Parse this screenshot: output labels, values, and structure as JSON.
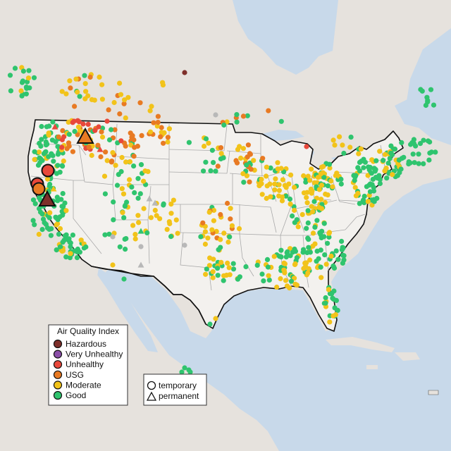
{
  "legend": {
    "title": "Air Quality Index",
    "items": [
      {
        "label": "Hazardous",
        "color": "#7e2f2a"
      },
      {
        "label": "Very Unhealthy",
        "color": "#8b4fa8"
      },
      {
        "label": "Unhealthy",
        "color": "#e8483b"
      },
      {
        "label": "USG",
        "color": "#e87a23"
      },
      {
        "label": "Moderate",
        "color": "#f2c31a"
      },
      {
        "label": "Good",
        "color": "#2fc46e"
      }
    ]
  },
  "shape_legend": {
    "items": [
      {
        "label": "temporary",
        "shape": "circle"
      },
      {
        "label": "permanent",
        "shape": "triangle"
      }
    ]
  },
  "colors": {
    "water": "#c8d9ea",
    "land": "#e6e2dd",
    "land_us": "#f3f1ee",
    "border": "#111111",
    "state_line": "#a9a9a9",
    "no_data": "#b8b8b8"
  },
  "large_markers": [
    {
      "shape": "triangle",
      "category": "USG"
    },
    {
      "shape": "circle",
      "category": "Unhealthy"
    },
    {
      "shape": "circle",
      "category": "Unhealthy"
    },
    {
      "shape": "circle",
      "category": "USG"
    },
    {
      "shape": "triangle",
      "category": "Hazardous"
    }
  ]
}
